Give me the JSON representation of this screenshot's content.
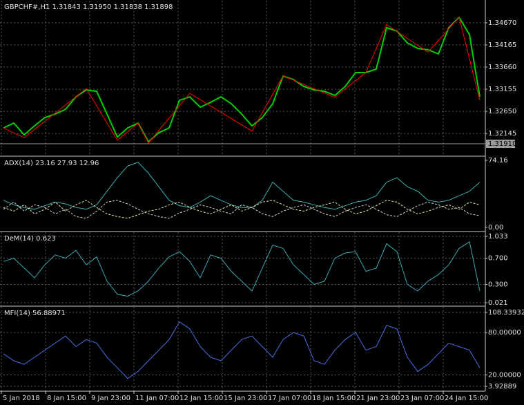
{
  "chart_data": [
    {
      "type": "line",
      "title": "GBPCHF#,H1  1.31843 1.31950 1.31838 1.31898",
      "ylim": [
        1.3169,
        1.3519
      ],
      "yticks": [
        {
          "value": 1.3467,
          "label": "1.34670"
        },
        1.34165,
        {
          "value": 1.3366,
          "label": "1.33660"
        },
        1.33155,
        {
          "value": 1.3265,
          "label": "1.32650"
        },
        1.32145
      ],
      "last_price": {
        "value": 1.3191,
        "label": "1.31910"
      },
      "grid": true,
      "series": [
        {
          "color": "#00d000",
          "values": [
            1.32271,
            1.32382,
            1.32114,
            1.32319,
            1.32508,
            1.32587,
            1.32697,
            1.32982,
            1.33139,
            1.33108,
            1.32587,
            1.32066,
            1.32271,
            1.32382,
            1.31956,
            1.32161,
            1.32271,
            1.32903,
            1.32982,
            1.32745,
            1.32855,
            1.32982,
            1.32824,
            1.32587,
            1.32319,
            1.32508,
            1.32824,
            1.33455,
            1.33376,
            1.33218,
            1.33139,
            1.33108,
            1.33013,
            1.33218,
            1.33534,
            1.33534,
            1.33613,
            1.3456,
            1.34481,
            1.34212,
            1.34086,
            1.34055,
            1.3396,
            1.3456,
            1.34796,
            1.34402,
            1.32982
          ]
        },
        {
          "color": "#ff0000",
          "x": [
            0,
            2,
            8,
            11,
            13,
            14,
            18,
            24,
            27,
            32,
            35,
            37,
            41,
            44,
            46
          ],
          "values": [
            1.3227,
            1.3205,
            1.3317,
            1.3199,
            1.3238,
            1.3193,
            1.3306,
            1.322,
            1.3346,
            1.3297,
            1.3354,
            1.3463,
            1.34,
            1.348,
            1.329
          ]
        }
      ]
    },
    {
      "type": "line",
      "title": "ADX(14) 23.16 27.93 12.96",
      "ylim": [
        0,
        74.16
      ],
      "yticks": [
        74.16,
        {
          "value": 0,
          "label": "0.00"
        }
      ],
      "grid": false,
      "series": [
        {
          "color": "#3cb0b0",
          "values": [
            30,
            25,
            22,
            20,
            24,
            28,
            26,
            22,
            20,
            25,
            40,
            55,
            68,
            72,
            60,
            45,
            30,
            24,
            22,
            28,
            35,
            30,
            25,
            22,
            22,
            30,
            50,
            40,
            30,
            28,
            25,
            22,
            20,
            24,
            28,
            30,
            35,
            50,
            55,
            45,
            40,
            30,
            28,
            30,
            35,
            40,
            50
          ]
        },
        {
          "color": "#e8e8a0",
          "dash": true,
          "values": [
            22,
            18,
            25,
            15,
            20,
            28,
            18,
            25,
            30,
            22,
            15,
            12,
            10,
            14,
            18,
            20,
            25,
            28,
            22,
            18,
            15,
            20,
            25,
            18,
            22,
            28,
            30,
            25,
            20,
            18,
            22,
            25,
            28,
            20,
            15,
            18,
            24,
            30,
            28,
            20,
            15,
            18,
            22,
            25,
            20,
            28,
            25
          ]
        },
        {
          "color": "#d8d8d8",
          "dash": true,
          "values": [
            20,
            28,
            18,
            25,
            22,
            15,
            20,
            12,
            10,
            18,
            28,
            30,
            26,
            20,
            15,
            12,
            10,
            16,
            20,
            25,
            22,
            18,
            15,
            25,
            22,
            15,
            12,
            18,
            22,
            25,
            20,
            15,
            12,
            18,
            22,
            25,
            20,
            14,
            12,
            18,
            24,
            28,
            25,
            20,
            22,
            15,
            13
          ]
        }
      ]
    },
    {
      "type": "line",
      "title": "DeM(14) 0.623",
      "ylim": [
        0.021,
        1.033
      ],
      "yticks": [
        1.033,
        {
          "value": 0.7,
          "label": "0.700"
        },
        {
          "value": 0.3,
          "label": "0.300"
        },
        0.021
      ],
      "grid": true,
      "series": [
        {
          "color": "#3ca8b4",
          "values": [
            0.65,
            0.7,
            0.55,
            0.4,
            0.6,
            0.75,
            0.7,
            0.82,
            0.6,
            0.72,
            0.35,
            0.15,
            0.12,
            0.2,
            0.35,
            0.55,
            0.72,
            0.8,
            0.65,
            0.4,
            0.75,
            0.7,
            0.5,
            0.35,
            0.2,
            0.55,
            0.9,
            0.85,
            0.6,
            0.45,
            0.3,
            0.35,
            0.7,
            0.78,
            0.8,
            0.5,
            0.55,
            0.92,
            0.8,
            0.3,
            0.2,
            0.35,
            0.45,
            0.6,
            0.85,
            0.95,
            0.2
          ]
        }
      ]
    },
    {
      "type": "line",
      "title": "MFI(14) 56.88971",
      "ylim": [
        3.92889,
        108.33932
      ],
      "yticks": [
        108.33932,
        {
          "value": 80,
          "label": "80.00000"
        },
        {
          "value": 20,
          "label": "20.00000"
        },
        3.92889
      ],
      "grid": true,
      "series": [
        {
          "color": "#4a6ee6",
          "values": [
            50,
            40,
            35,
            45,
            55,
            65,
            75,
            60,
            70,
            65,
            45,
            30,
            15,
            25,
            40,
            55,
            70,
            95,
            85,
            60,
            45,
            40,
            55,
            70,
            75,
            60,
            45,
            70,
            80,
            75,
            40,
            35,
            55,
            70,
            80,
            55,
            60,
            90,
            85,
            45,
            25,
            35,
            50,
            65,
            60,
            55,
            30
          ]
        }
      ]
    }
  ],
  "time_axis": [
    "5 Jan 2018",
    "8 Jan 15:00",
    "9 Jan 23:00",
    "11 Jan 07:00",
    "12 Jan 15:00",
    "15 Jan 23:00",
    "17 Jan 07:00",
    "18 Jan 15:00",
    "21 Jan 23:00",
    "23 Jan 07:00",
    "24 Jan 15:00"
  ]
}
